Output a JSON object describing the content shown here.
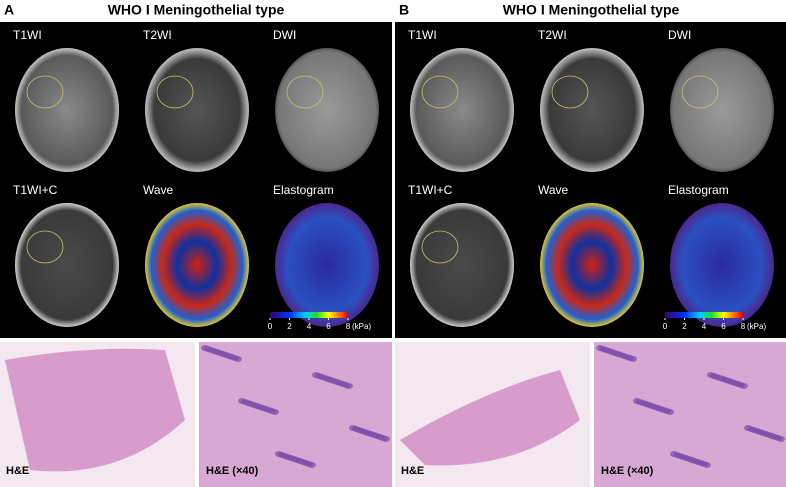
{
  "panels": [
    {
      "letter": "A",
      "title": "WHO I Meningothelial type",
      "mri_labels": [
        "T1WI",
        "T2WI",
        "DWI",
        "T1WI+C",
        "Wave",
        "Elastogram"
      ],
      "colorbar": {
        "ticks": [
          0,
          2,
          4,
          6,
          8
        ],
        "unit": "(kPa)"
      },
      "histology_labels": [
        "H&E",
        "H&E (×40)"
      ]
    },
    {
      "letter": "B",
      "title": "WHO I Meningothelial type",
      "mri_labels": [
        "T1WI",
        "T2WI",
        "DWI",
        "T1WI+C",
        "Wave",
        "Elastogram"
      ],
      "colorbar": {
        "ticks": [
          0,
          2,
          4,
          6,
          8
        ],
        "unit": "(kPa)"
      },
      "histology_labels": [
        "H&E",
        "H&E (×40)"
      ]
    }
  ]
}
